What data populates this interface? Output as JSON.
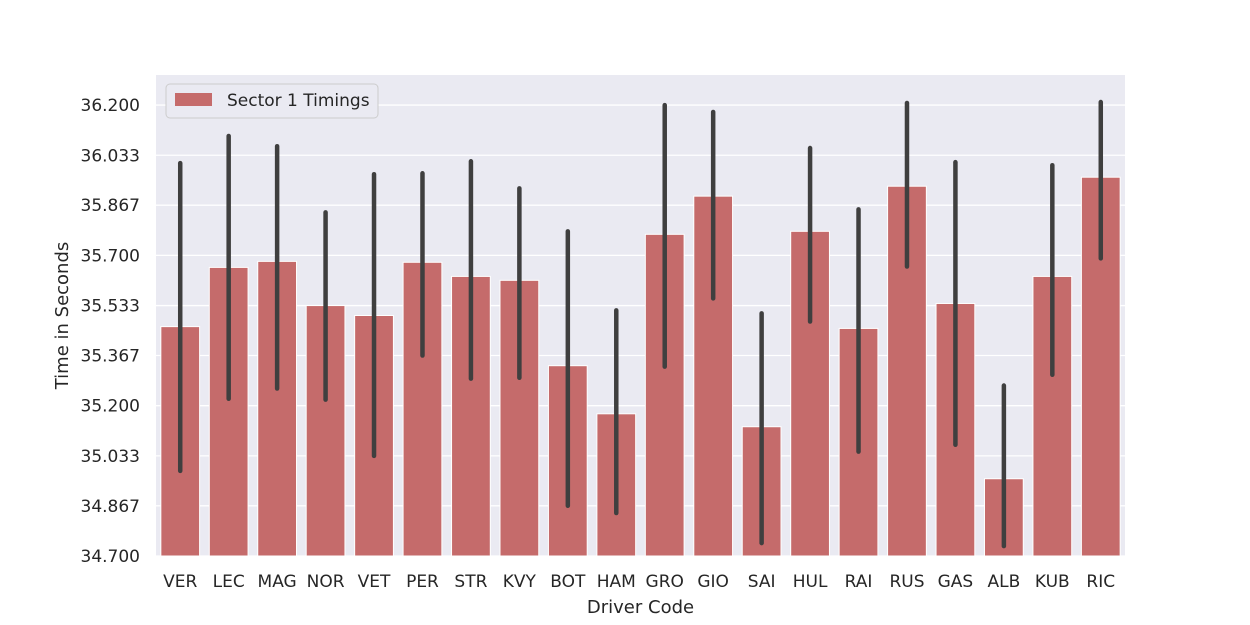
{
  "chart_data": {
    "type": "bar",
    "title": "",
    "xlabel": "Driver Code",
    "ylabel": "Time in Seconds",
    "ylim": [
      34.7,
      36.3
    ],
    "yticks": [
      "34.700",
      "34.867",
      "35.033",
      "35.200",
      "35.367",
      "35.533",
      "35.700",
      "35.867",
      "36.033",
      "36.200"
    ],
    "grid": true,
    "legend_position": "top-left",
    "colors": {
      "bar": "#c56b6b",
      "error_bar": "#3f3f3f",
      "background": "#eaeaf2",
      "grid": "#ffffff"
    },
    "categories": [
      "VER",
      "LEC",
      "MAG",
      "NOR",
      "VET",
      "PER",
      "STR",
      "KVY",
      "BOT",
      "HAM",
      "GRO",
      "GIO",
      "SAI",
      "HUL",
      "RAI",
      "RUS",
      "GAS",
      "ALB",
      "KUB",
      "RIC"
    ],
    "series": [
      {
        "name": "Sector 1 Timings",
        "values": [
          35.463,
          35.66,
          35.68,
          35.533,
          35.5,
          35.677,
          35.63,
          35.617,
          35.333,
          35.173,
          35.77,
          35.897,
          35.13,
          35.78,
          35.457,
          35.93,
          35.54,
          34.957,
          35.63,
          35.96
        ],
        "error_low": [
          34.983,
          35.223,
          35.257,
          35.22,
          35.033,
          35.367,
          35.29,
          35.293,
          34.867,
          34.843,
          35.33,
          35.557,
          34.743,
          35.48,
          35.047,
          35.663,
          35.07,
          34.733,
          35.303,
          35.69
        ],
        "error_high": [
          36.007,
          36.097,
          36.063,
          35.843,
          35.97,
          35.973,
          36.013,
          35.923,
          35.78,
          35.517,
          36.2,
          36.177,
          35.507,
          36.057,
          35.853,
          36.207,
          36.01,
          35.267,
          36.0,
          36.21
        ]
      }
    ]
  }
}
